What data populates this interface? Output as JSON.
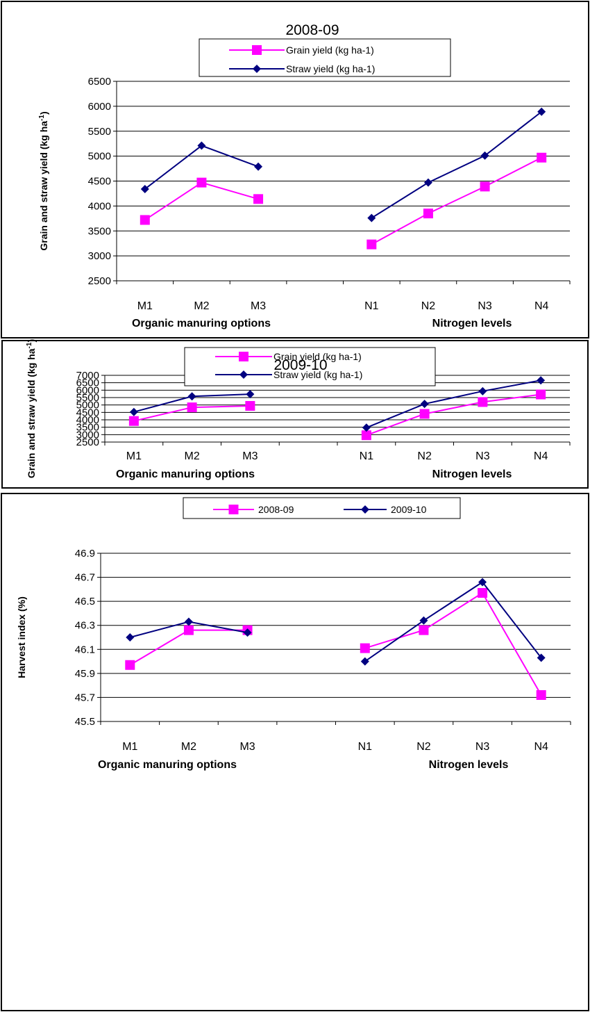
{
  "colors": {
    "grain": "#ff00ff",
    "straw": "#000080",
    "frame": "#000000"
  },
  "chart_data": [
    {
      "type": "line",
      "title": "2008-09",
      "ylabel": "Grain and straw yield (kg ha",
      "ylabel_sup": "-1",
      "ylabel_end": ")",
      "categories": [
        "M1",
        "M2",
        "M3",
        "",
        "N1",
        "N2",
        "N3",
        "N4"
      ],
      "group_labels": [
        "Organic manuring options",
        "Nitrogen levels"
      ],
      "ylim": [
        2500,
        6500
      ],
      "yticks": [
        "2500",
        "3000",
        "3500",
        "4000",
        "4500",
        "5000",
        "5500",
        "6000",
        "6500"
      ],
      "grid": true,
      "legend_position": "top-center",
      "series": [
        {
          "name": "Grain yield (kg ha-1)",
          "color": "#ff00ff",
          "marker": "square",
          "values": [
            3720,
            4470,
            4140,
            null,
            3230,
            3850,
            4390,
            4970
          ]
        },
        {
          "name": "Straw yield (kg ha-1)",
          "color": "#000080",
          "marker": "diamond",
          "values": [
            4340,
            5210,
            4790,
            null,
            3760,
            4470,
            5010,
            5890
          ]
        }
      ]
    },
    {
      "type": "line",
      "title": "2009-10",
      "ylabel": "Grain and straw yield (kg ha",
      "ylabel_sup": "-1",
      "ylabel_end": ")",
      "categories": [
        "M1",
        "M2",
        "M3",
        "",
        "N1",
        "N2",
        "N3",
        "N4"
      ],
      "group_labels": [
        "Organic manuring options",
        "Nitrogen levels"
      ],
      "ylim": [
        2500,
        7000
      ],
      "yticks": [
        "2500",
        "3000",
        "3500",
        "4000",
        "4500",
        "5000",
        "5500",
        "6000",
        "6500",
        "7000"
      ],
      "grid": true,
      "legend_position": "top-center",
      "series": [
        {
          "name": "Grain yield (kg ha-1)",
          "color": "#ff00ff",
          "marker": "square",
          "values": [
            3920,
            4840,
            4940,
            null,
            2960,
            4400,
            5200,
            5710
          ]
        },
        {
          "name": "Straw yield (kg ha-1)",
          "color": "#000080",
          "marker": "diamond",
          "values": [
            4530,
            5580,
            5730,
            null,
            3470,
            5070,
            5930,
            6660
          ]
        }
      ]
    },
    {
      "type": "line",
      "title": "",
      "ylabel": "Harvest index (%)",
      "ylabel_sup": "",
      "ylabel_end": "",
      "categories": [
        "M1",
        "M2",
        "M3",
        "",
        "N1",
        "N2",
        "N3",
        "N4"
      ],
      "group_labels": [
        "Organic manuring options",
        "Nitrogen levels"
      ],
      "ylim": [
        45.5,
        46.9
      ],
      "yticks": [
        "45.5",
        "45.7",
        "45.9",
        "46.1",
        "46.3",
        "46.5",
        "46.7",
        "46.9"
      ],
      "grid": true,
      "legend_position": "top-center",
      "series": [
        {
          "name": "2008-09",
          "color": "#ff00ff",
          "marker": "square",
          "values": [
            45.97,
            46.26,
            46.26,
            null,
            46.11,
            46.26,
            46.57,
            45.72
          ]
        },
        {
          "name": "2009-10",
          "color": "#000080",
          "marker": "diamond",
          "values": [
            46.2,
            46.33,
            46.24,
            null,
            46.0,
            46.34,
            46.66,
            46.03
          ]
        }
      ]
    }
  ]
}
